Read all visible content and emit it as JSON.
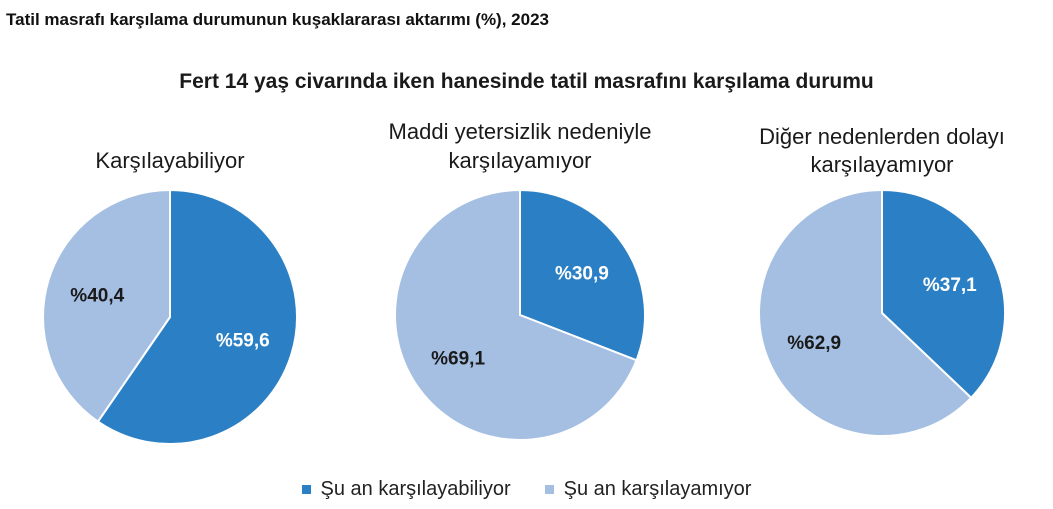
{
  "page": {
    "title": "Tatil masrafı karşılama durumunun kuşaklararası aktarımı (%), 2023"
  },
  "chart_data": {
    "type": "pie",
    "title": "Fert 14 yaş civarında iken hanesinde tatil masrafını karşılama durumu",
    "colors": {
      "can_afford": "#2B80C5",
      "cannot_afford": "#A5BFE3"
    },
    "legend": [
      "Şu an karşılayabiliyor",
      "Şu an karşılayamıyor"
    ],
    "legend_position": "bottom",
    "pies": [
      {
        "title": [
          "Karşılayabiliyor"
        ],
        "slices": [
          {
            "name": "Şu an karşılayabiliyor",
            "value": 59.6,
            "label": "%59,6"
          },
          {
            "name": "Şu an karşılayamıyor",
            "value": 40.4,
            "label": "%40,4"
          }
        ]
      },
      {
        "title": [
          "Maddi yetersizlik nedeniyle",
          "karşılayamıyor"
        ],
        "slices": [
          {
            "name": "Şu an karşılayabiliyor",
            "value": 30.9,
            "label": "%30,9"
          },
          {
            "name": "Şu an karşılayamıyor",
            "value": 69.1,
            "label": "%69,1"
          }
        ]
      },
      {
        "title": [
          "Diğer nedenlerden dolayı",
          "karşılayamıyor"
        ],
        "slices": [
          {
            "name": "Şu an karşılayabiliyor",
            "value": 37.1,
            "label": "%37,1"
          },
          {
            "name": "Şu an karşılayamıyor",
            "value": 62.9,
            "label": "%62,9"
          }
        ]
      }
    ]
  }
}
